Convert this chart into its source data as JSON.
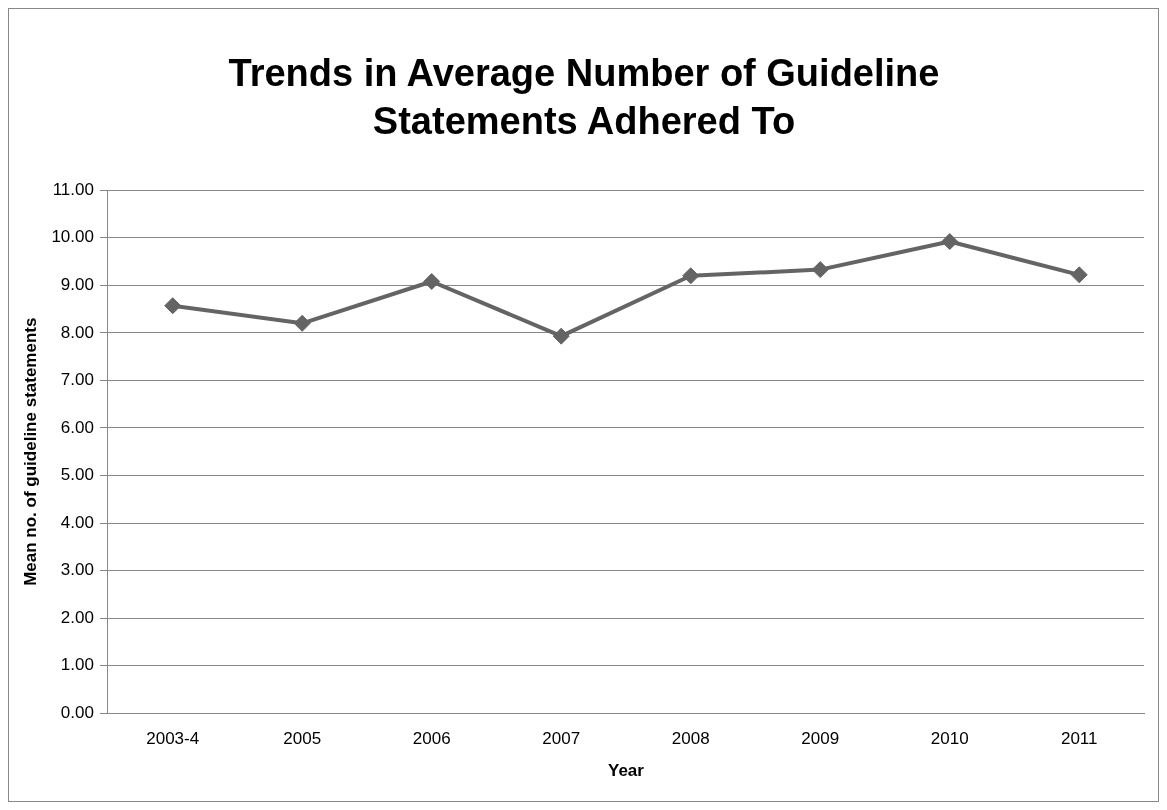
{
  "chart_data": {
    "type": "line",
    "title": "Trends in Average Number of Guideline Statements Adhered To",
    "xlabel": "Year",
    "ylabel": "Mean no. of guideline statements",
    "categories": [
      "2003-4",
      "2005",
      "2006",
      "2007",
      "2008",
      "2009",
      "2010",
      "2011"
    ],
    "series": [
      {
        "color": "#646464",
        "values": [
          8.57,
          8.2,
          9.08,
          7.93,
          9.2,
          9.33,
          9.92,
          9.22
        ]
      }
    ],
    "ylim": [
      0,
      11
    ],
    "yticks": [
      {
        "value": 0,
        "label": "0.00"
      },
      {
        "value": 1,
        "label": "1.00"
      },
      {
        "value": 2,
        "label": "2.00"
      },
      {
        "value": 3,
        "label": "3.00"
      },
      {
        "value": 4,
        "label": "4.00"
      },
      {
        "value": 5,
        "label": "5.00"
      },
      {
        "value": 6,
        "label": "6.00"
      },
      {
        "value": 7,
        "label": "7.00"
      },
      {
        "value": 8,
        "label": "8.00"
      },
      {
        "value": 9,
        "label": "9.00"
      },
      {
        "value": 10,
        "label": "10.00"
      },
      {
        "value": 11,
        "label": "11.00"
      }
    ],
    "grid": "y",
    "legend": false,
    "marker": "diamond",
    "line_style": "solid"
  }
}
